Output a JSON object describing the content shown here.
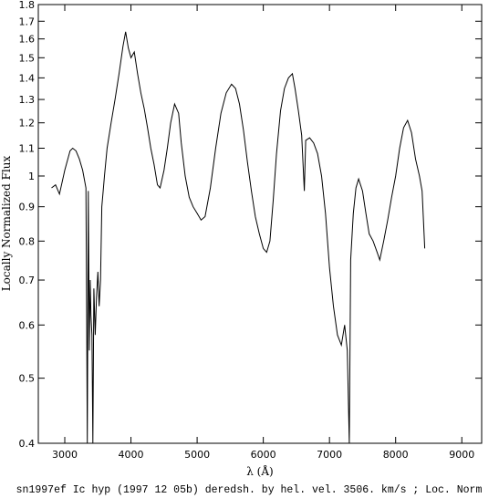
{
  "chart_data": {
    "type": "line",
    "xlabel": "λ (Å)",
    "ylabel": "Locally Normalized Flux",
    "caption": "sn1997ef Ic hyp (1997 12 05b) deredsh. by hel. vel.  3506. km/s ;  Loc. Norm",
    "xlim": [
      2600,
      9300
    ],
    "ylim": [
      0.4,
      1.8
    ],
    "yscale": "log",
    "x_ticks": [
      3000,
      4000,
      5000,
      6000,
      7000,
      8000,
      9000
    ],
    "y_ticks": [
      0.4,
      0.5,
      0.6,
      0.7,
      0.8,
      0.9,
      1,
      1.1,
      1.2,
      1.3,
      1.4,
      1.5,
      1.6,
      1.7,
      1.8
    ],
    "y_tick_labels": [
      "0.4",
      "0.5",
      "0.6",
      "0.7",
      "0.8",
      "0.9",
      "1",
      "1.1",
      "1.2",
      "1.3",
      "1.4",
      "1.5",
      "1.6",
      "1.7",
      "1.8"
    ],
    "grid": false,
    "legend": "none",
    "series": [
      {
        "color": "#000000",
        "points": [
          [
            2800,
            0.96
          ],
          [
            2860,
            0.97
          ],
          [
            2920,
            0.94
          ],
          [
            3000,
            1.02
          ],
          [
            3080,
            1.09
          ],
          [
            3120,
            1.1
          ],
          [
            3170,
            1.09
          ],
          [
            3220,
            1.06
          ],
          [
            3270,
            1.02
          ],
          [
            3320,
            0.96
          ],
          [
            3330,
            0.62
          ],
          [
            3340,
            0.4
          ],
          [
            3355,
            0.95
          ],
          [
            3370,
            0.55
          ],
          [
            3385,
            0.7
          ],
          [
            3395,
            0.62
          ],
          [
            3410,
            0.58
          ],
          [
            3425,
            0.4
          ],
          [
            3440,
            0.68
          ],
          [
            3460,
            0.58
          ],
          [
            3480,
            0.66
          ],
          [
            3500,
            0.72
          ],
          [
            3520,
            0.64
          ],
          [
            3540,
            0.7
          ],
          [
            3560,
            0.9
          ],
          [
            3580,
            0.95
          ],
          [
            3600,
            1.0
          ],
          [
            3640,
            1.1
          ],
          [
            3700,
            1.2
          ],
          [
            3760,
            1.3
          ],
          [
            3820,
            1.42
          ],
          [
            3880,
            1.56
          ],
          [
            3920,
            1.64
          ],
          [
            3960,
            1.55
          ],
          [
            4000,
            1.5
          ],
          [
            4050,
            1.53
          ],
          [
            4100,
            1.42
          ],
          [
            4150,
            1.33
          ],
          [
            4200,
            1.26
          ],
          [
            4250,
            1.18
          ],
          [
            4300,
            1.1
          ],
          [
            4350,
            1.04
          ],
          [
            4400,
            0.97
          ],
          [
            4440,
            0.96
          ],
          [
            4500,
            1.02
          ],
          [
            4550,
            1.1
          ],
          [
            4600,
            1.2
          ],
          [
            4660,
            1.28
          ],
          [
            4720,
            1.24
          ],
          [
            4760,
            1.12
          ],
          [
            4820,
            1.0
          ],
          [
            4880,
            0.93
          ],
          [
            4940,
            0.9
          ],
          [
            5000,
            0.88
          ],
          [
            5060,
            0.86
          ],
          [
            5120,
            0.87
          ],
          [
            5200,
            0.96
          ],
          [
            5280,
            1.1
          ],
          [
            5360,
            1.24
          ],
          [
            5440,
            1.33
          ],
          [
            5520,
            1.37
          ],
          [
            5580,
            1.35
          ],
          [
            5640,
            1.28
          ],
          [
            5700,
            1.17
          ],
          [
            5760,
            1.05
          ],
          [
            5820,
            0.95
          ],
          [
            5880,
            0.87
          ],
          [
            5940,
            0.82
          ],
          [
            6000,
            0.78
          ],
          [
            6050,
            0.77
          ],
          [
            6100,
            0.8
          ],
          [
            6150,
            0.92
          ],
          [
            6200,
            1.08
          ],
          [
            6260,
            1.25
          ],
          [
            6320,
            1.35
          ],
          [
            6380,
            1.4
          ],
          [
            6440,
            1.42
          ],
          [
            6480,
            1.35
          ],
          [
            6530,
            1.25
          ],
          [
            6580,
            1.15
          ],
          [
            6620,
            0.95
          ],
          [
            6640,
            1.13
          ],
          [
            6700,
            1.14
          ],
          [
            6760,
            1.12
          ],
          [
            6820,
            1.08
          ],
          [
            6880,
            1.0
          ],
          [
            6940,
            0.88
          ],
          [
            7000,
            0.73
          ],
          [
            7060,
            0.64
          ],
          [
            7120,
            0.58
          ],
          [
            7180,
            0.56
          ],
          [
            7230,
            0.6
          ],
          [
            7270,
            0.55
          ],
          [
            7300,
            0.4
          ],
          [
            7320,
            0.75
          ],
          [
            7360,
            0.88
          ],
          [
            7400,
            0.96
          ],
          [
            7440,
            0.99
          ],
          [
            7500,
            0.95
          ],
          [
            7550,
            0.88
          ],
          [
            7600,
            0.82
          ],
          [
            7660,
            0.8
          ],
          [
            7720,
            0.77
          ],
          [
            7760,
            0.75
          ],
          [
            7820,
            0.8
          ],
          [
            7880,
            0.86
          ],
          [
            7940,
            0.93
          ],
          [
            8000,
            1.0
          ],
          [
            8060,
            1.1
          ],
          [
            8120,
            1.18
          ],
          [
            8180,
            1.21
          ],
          [
            8240,
            1.16
          ],
          [
            8300,
            1.06
          ],
          [
            8360,
            1.0
          ],
          [
            8400,
            0.95
          ],
          [
            8440,
            0.78
          ]
        ]
      }
    ]
  }
}
